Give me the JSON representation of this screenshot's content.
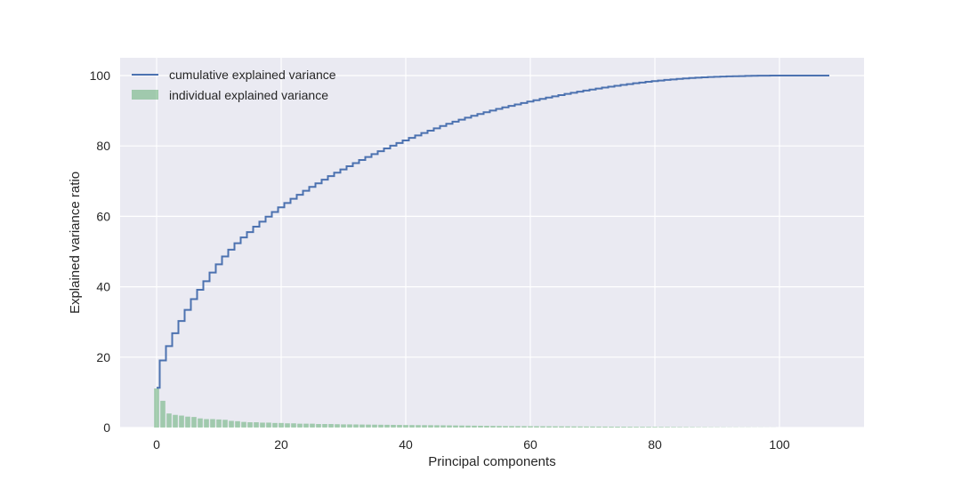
{
  "chart_data": {
    "type": "bar+step",
    "title": "",
    "xlabel": "Principal components",
    "ylabel": "Explained variance ratio",
    "xlim": [
      -4.5,
      113
    ],
    "ylim": [
      0,
      105
    ],
    "x_ticks": [
      0,
      20,
      40,
      60,
      80,
      100
    ],
    "y_ticks": [
      0,
      20,
      40,
      60,
      80,
      100
    ],
    "grid": true,
    "legend_position": "upper left",
    "legend": [
      {
        "label": "cumulative explained variance",
        "type": "line",
        "color": "#4c72b0"
      },
      {
        "label": "individual explained variance",
        "type": "bar",
        "color": "#55a868"
      }
    ],
    "colors": {
      "background": "#eaeaf2",
      "grid": "#ffffff",
      "line": "#4c72b0",
      "bar": "#55a868",
      "bar_alpha": 0.5
    },
    "series": [
      {
        "name": "individual explained variance",
        "type": "bar",
        "values": [
          11.1,
          7.6,
          4.0,
          3.6,
          3.4,
          3.1,
          3.0,
          2.6,
          2.4,
          2.4,
          2.3,
          2.2,
          1.9,
          1.8,
          1.6,
          1.5,
          1.5,
          1.4,
          1.4,
          1.3,
          1.3,
          1.2,
          1.2,
          1.1,
          1.1,
          1.1,
          1.0,
          1.0,
          1.0,
          0.95,
          0.9,
          0.9,
          0.88,
          0.86,
          0.84,
          0.82,
          0.8,
          0.78,
          0.76,
          0.74,
          0.72,
          0.7,
          0.69,
          0.68,
          0.67,
          0.65,
          0.63,
          0.61,
          0.59,
          0.57,
          0.55,
          0.53,
          0.51,
          0.49,
          0.47,
          0.45,
          0.43,
          0.42,
          0.41,
          0.4,
          0.39,
          0.38,
          0.37,
          0.36,
          0.35,
          0.34,
          0.33,
          0.32,
          0.31,
          0.3,
          0.29,
          0.28,
          0.27,
          0.26,
          0.25,
          0.24,
          0.23,
          0.22,
          0.21,
          0.2,
          0.19,
          0.17,
          0.16,
          0.15,
          0.14,
          0.13,
          0.12,
          0.1,
          0.09,
          0.08,
          0.07,
          0.06,
          0.05,
          0.05,
          0.04,
          0.04,
          0.03,
          0.03,
          0.02,
          0.02,
          0.0,
          0.0,
          0.0,
          0.0,
          0.0,
          0.0,
          0.0,
          0.0,
          0.0
        ]
      },
      {
        "name": "cumulative explained variance",
        "type": "step",
        "values_note": "running sum of individual explained variance, capped at 100",
        "end_x": 108
      }
    ]
  }
}
